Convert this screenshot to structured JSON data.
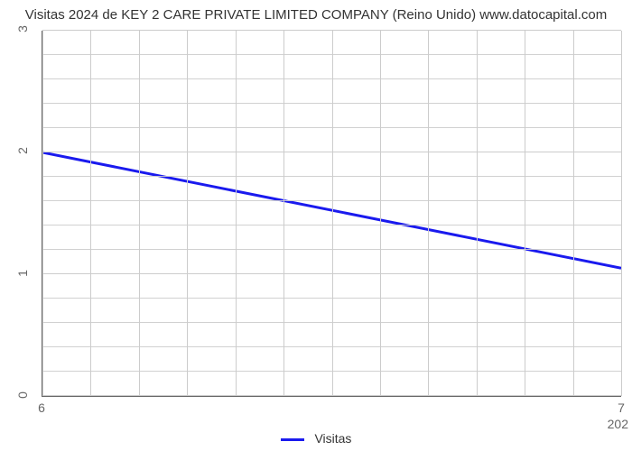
{
  "chart": {
    "type": "line",
    "title": "Visitas 2024 de KEY 2 CARE PRIVATE LIMITED COMPANY (Reino Unido) www.datocapital.com",
    "title_fontsize": 15,
    "title_color": "#333333",
    "background_color": "#ffffff",
    "grid_color": "#cccccc",
    "axis_color": "#666666",
    "y": {
      "min": 0,
      "max": 3,
      "ticks": [
        0,
        1,
        2,
        3
      ],
      "minor_divisions": 5,
      "label_color": "#666666",
      "label_fontsize": 14
    },
    "x": {
      "ticks_left": "6",
      "ticks_right": "7",
      "bottom_right_label": "202",
      "minor_divisions": 12,
      "label_color": "#666666",
      "label_fontsize": 14
    },
    "series": {
      "name": "Visitas",
      "color": "#1a1aee",
      "line_width": 3,
      "points": [
        {
          "x_frac": 0.0,
          "y_val": 2.0
        },
        {
          "x_frac": 1.0,
          "y_val": 1.05
        }
      ]
    },
    "legend": {
      "label": "Visitas",
      "color": "#1a1aee",
      "fontsize": 14
    }
  }
}
